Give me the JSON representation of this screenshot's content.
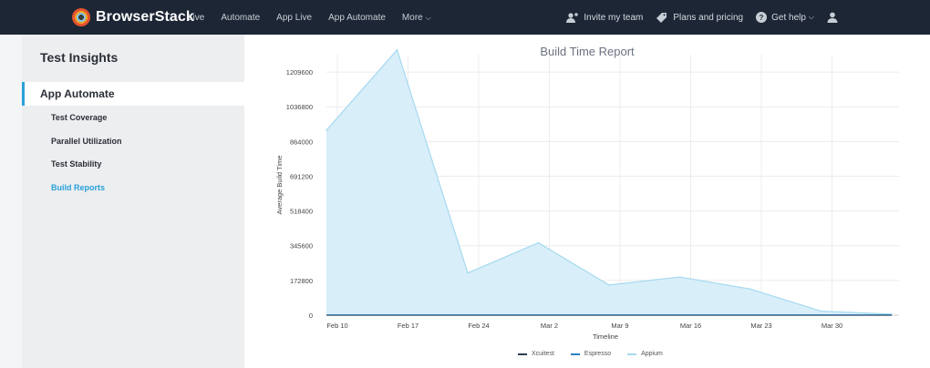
{
  "brand": {
    "name": "BrowserStack"
  },
  "nav": {
    "items": [
      "Live",
      "Automate",
      "App Live",
      "App Automate",
      "More"
    ]
  },
  "right_nav": {
    "invite": "Invite my team",
    "plans": "Plans and pricing",
    "help": "Get help"
  },
  "sidebar": {
    "title": "Test Insights",
    "section": "App Automate",
    "items": [
      "Test Coverage",
      "Parallel Utilization",
      "Test Stability",
      "Build Reports"
    ],
    "active_index": 3
  },
  "colors": {
    "accent": "#2ea0d8",
    "area_fill": "#d8eef9",
    "area_line": "#a6d9f0",
    "xcuitest": "#2d3e50",
    "espresso": "#2a7fbf"
  },
  "chart_data": {
    "type": "area",
    "title": "Build Time Report",
    "xlabel": "Timeline",
    "ylabel": "Average Build Time",
    "x_ticks": [
      "Feb 10",
      "Feb 17",
      "Feb 24",
      "Mar 2",
      "Mar 9",
      "Mar 16",
      "Mar 23",
      "Mar 30"
    ],
    "y_ticks": [
      "0",
      "172800",
      "345600",
      "518400",
      "691200",
      "864000",
      "1036800",
      "1209600"
    ],
    "ylim": [
      0,
      1296000
    ],
    "grid": true,
    "legend_position": "bottom",
    "series": [
      {
        "name": "Xcuitest",
        "x": [
          "Feb 10",
          "Feb 17",
          "Feb 24",
          "Mar 2",
          "Mar 9",
          "Mar 16",
          "Mar 23",
          "Mar 30",
          "Apr 6"
        ],
        "values": [
          0,
          0,
          0,
          0,
          0,
          0,
          0,
          0,
          0
        ]
      },
      {
        "name": "Espresso",
        "x": [
          "Feb 10",
          "Feb 17",
          "Feb 24",
          "Mar 2",
          "Mar 9",
          "Mar 16",
          "Mar 23",
          "Mar 30",
          "Apr 6"
        ],
        "values": [
          0,
          0,
          0,
          0,
          0,
          0,
          0,
          0,
          0
        ]
      },
      {
        "name": "Appium",
        "x": [
          "Feb 10",
          "Feb 17",
          "Feb 24",
          "Mar 2",
          "Mar 9",
          "Mar 16",
          "Mar 23",
          "Mar 30",
          "Apr 6"
        ],
        "values": [
          920000,
          1320000,
          210000,
          360000,
          150000,
          190000,
          130000,
          20000,
          5000
        ]
      }
    ]
  }
}
